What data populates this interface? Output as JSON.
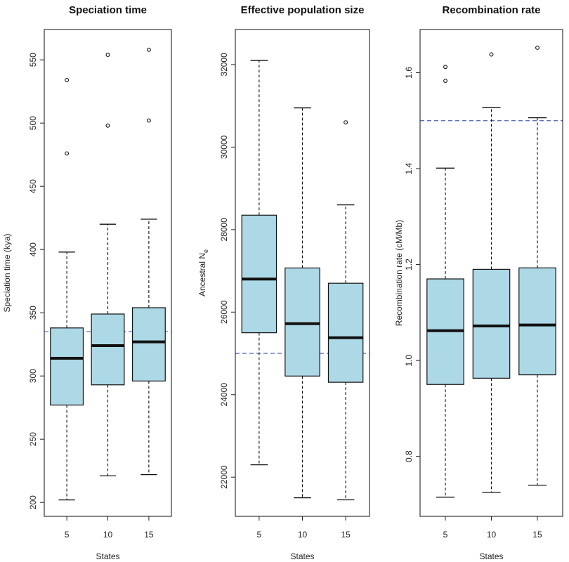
{
  "chart_data": [
    {
      "type": "boxplot",
      "title": "Speciation time",
      "xlabel": "States",
      "ylabel": "Speciation time (kya)",
      "ylabel_sub": "",
      "categories": [
        "5",
        "10",
        "15"
      ],
      "yticks": [
        200,
        250,
        300,
        350,
        400,
        450,
        500,
        550
      ],
      "ylim": [
        189,
        574
      ],
      "reference_line": 335,
      "box_color": "#add8e6",
      "ref_color": "#4a5fb0",
      "boxes": [
        {
          "category": "5",
          "whisker_low": 202,
          "q1": 277,
          "median": 314,
          "q3": 338,
          "whisker_high": 398,
          "outliers": [
            476,
            534
          ]
        },
        {
          "category": "10",
          "whisker_low": 221,
          "q1": 293,
          "median": 324,
          "q3": 349,
          "whisker_high": 420,
          "outliers": [
            498,
            554
          ]
        },
        {
          "category": "15",
          "whisker_low": 222,
          "q1": 296,
          "median": 327,
          "q3": 354,
          "whisker_high": 424,
          "outliers": [
            502,
            558
          ]
        }
      ]
    },
    {
      "type": "boxplot",
      "title": "Effective population size",
      "xlabel": "States",
      "ylabel": "Ancestral N",
      "ylabel_sub": "e",
      "categories": [
        "5",
        "10",
        "15"
      ],
      "yticks": [
        22000,
        24000,
        26000,
        28000,
        30000,
        32000
      ],
      "ylim": [
        21050,
        32850
      ],
      "reference_line": 25000,
      "box_color": "#add8e6",
      "ref_color": "#4a5fb0",
      "boxes": [
        {
          "category": "5",
          "whisker_low": 22300,
          "q1": 25500,
          "median": 26800,
          "q3": 28350,
          "whisker_high": 32100,
          "outliers": []
        },
        {
          "category": "10",
          "whisker_low": 21500,
          "q1": 24450,
          "median": 25720,
          "q3": 27070,
          "whisker_high": 30950,
          "outliers": []
        },
        {
          "category": "15",
          "whisker_low": 21450,
          "q1": 24300,
          "median": 25380,
          "q3": 26700,
          "whisker_high": 28600,
          "outliers": [
            30600
          ]
        }
      ]
    },
    {
      "type": "boxplot",
      "title": "Recombination rate",
      "xlabel": "States",
      "ylabel": "Recombination rate (cM/Mb)",
      "ylabel_sub": "",
      "categories": [
        "5",
        "10",
        "15"
      ],
      "yticks": [
        0.8,
        1.0,
        1.2,
        1.4,
        1.6
      ],
      "ylim": [
        0.675,
        1.69
      ],
      "reference_line": 1.5,
      "box_color": "#add8e6",
      "ref_color": "#4a5fb0",
      "boxes": [
        {
          "category": "5",
          "whisker_low": 0.715,
          "q1": 0.95,
          "median": 1.062,
          "q3": 1.17,
          "whisker_high": 1.401,
          "outliers": [
            1.583,
            1.612
          ]
        },
        {
          "category": "10",
          "whisker_low": 0.725,
          "q1": 0.963,
          "median": 1.072,
          "q3": 1.19,
          "whisker_high": 1.527,
          "outliers": [
            1.638
          ]
        },
        {
          "category": "15",
          "whisker_low": 0.74,
          "q1": 0.97,
          "median": 1.074,
          "q3": 1.193,
          "whisker_high": 1.506,
          "outliers": [
            1.652
          ]
        }
      ]
    }
  ]
}
